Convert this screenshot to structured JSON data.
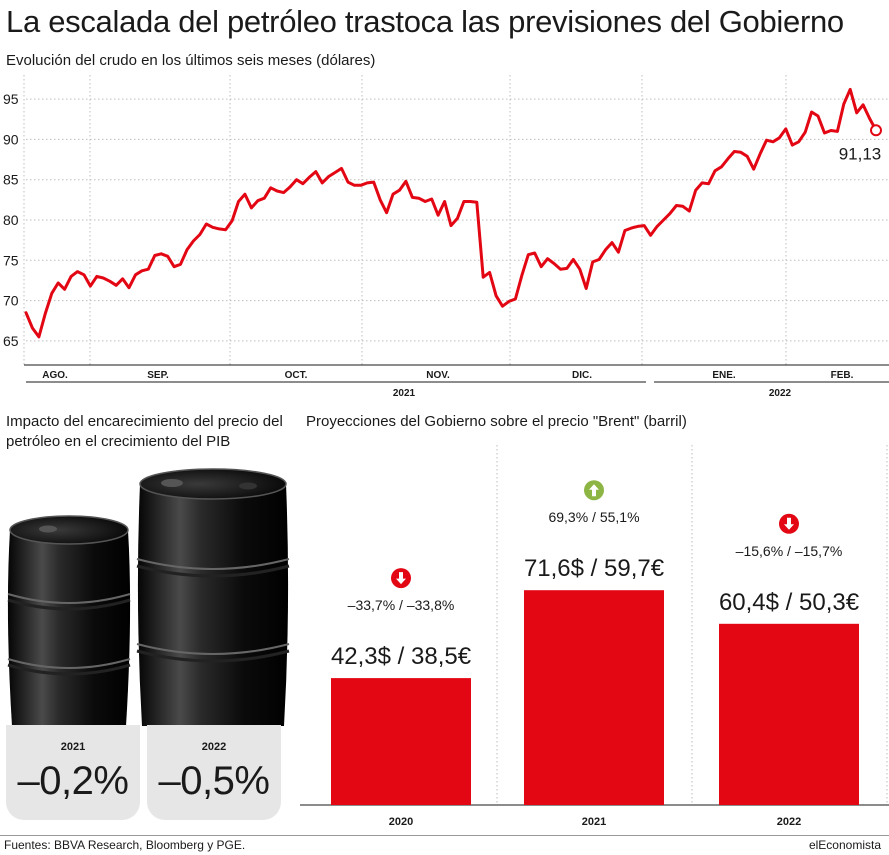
{
  "title": "La escalada del petróleo trastoca las previsiones del Gobierno",
  "source": "Fuentes: BBVA Research, Bloomberg y PGE.",
  "brand": "elEconomista",
  "colors": {
    "red": "#e30613",
    "green": "#8db544",
    "gray_card": "#e6e6e6",
    "dark": "#1a1a1a"
  },
  "chart_data": [
    {
      "type": "line",
      "title": "Evolución del crudo en los últimos seis meses (dólares)",
      "ylim": [
        63,
        97
      ],
      "yticks": [
        65,
        70,
        75,
        80,
        85,
        90,
        95
      ],
      "month_labels": [
        "AGO.",
        "SEP.",
        "OCT.",
        "NOV.",
        "DIC.",
        "ENE.",
        "FEB."
      ],
      "year_labels": [
        "2021",
        "2022"
      ],
      "last_value_label": "91,13",
      "series": [
        {
          "values": [
            68.5,
            66.6,
            65.5,
            68.4,
            70.9,
            72.2,
            71.4,
            73.0,
            73.6,
            73.2,
            71.8,
            73.0,
            72.8,
            72.4,
            71.9,
            72.7,
            71.6,
            73.2,
            73.7,
            73.9,
            75.6,
            75.8,
            75.5,
            74.2,
            74.5,
            76.3,
            77.4,
            78.2,
            79.5,
            79.1,
            78.9,
            78.8,
            79.9,
            82.3,
            83.2,
            81.5,
            82.4,
            82.7,
            84.0,
            83.6,
            83.4,
            84.1,
            85.0,
            84.5,
            85.3,
            86.0,
            84.6,
            85.4,
            85.9,
            86.4,
            84.7,
            84.3,
            84.3,
            84.6,
            84.7,
            82.5,
            80.9,
            83.2,
            83.7,
            84.8,
            82.8,
            82.7,
            82.3,
            82.6,
            80.6,
            82.3,
            79.3,
            80.2,
            82.3,
            82.3,
            82.2,
            72.9,
            73.5,
            70.6,
            69.3,
            69.9,
            70.2,
            73.1,
            75.7,
            75.9,
            74.2,
            75.2,
            74.6,
            73.9,
            74.0,
            75.1,
            73.9,
            71.5,
            74.8,
            75.1,
            76.3,
            77.2,
            76.0,
            78.7,
            79.0,
            79.2,
            79.3,
            78.1,
            79.2,
            80.0,
            80.8,
            81.8,
            81.7,
            81.1,
            83.7,
            84.6,
            84.5,
            86.1,
            86.6,
            87.6,
            88.5,
            88.4,
            87.9,
            86.3,
            88.2,
            89.9,
            89.7,
            90.2,
            91.3,
            89.3,
            89.7,
            90.9,
            93.4,
            92.9,
            90.8,
            91.1,
            91.0,
            94.4,
            96.2,
            93.3,
            94.3,
            92.6,
            91.13
          ]
        }
      ]
    },
    {
      "type": "bar",
      "title": "Proyecciones del Gobierno sobre el precio \"Brent\" (barril)",
      "categories": [
        "2020",
        "2021",
        "2022"
      ],
      "values": [
        42.3,
        71.6,
        60.4
      ],
      "value_labels": [
        "42,3$ / 38,5€",
        "71,6$ / 59,7€",
        "60,4$ / 50,3€"
      ],
      "change_labels": [
        "–33,7% / –33,8%",
        "69,3% / 55,1%",
        "–15,6% / –15,7%"
      ],
      "change_direction": [
        "down",
        "up",
        "down"
      ],
      "ylim": [
        0,
        100
      ]
    }
  ],
  "impact": {
    "title": "Impacto del encarecimiento del precio del petróleo en el crecimiento del PIB",
    "items": [
      {
        "year": "2021",
        "value": "–0,2%"
      },
      {
        "year": "2022",
        "value": "–0,5%"
      }
    ]
  }
}
